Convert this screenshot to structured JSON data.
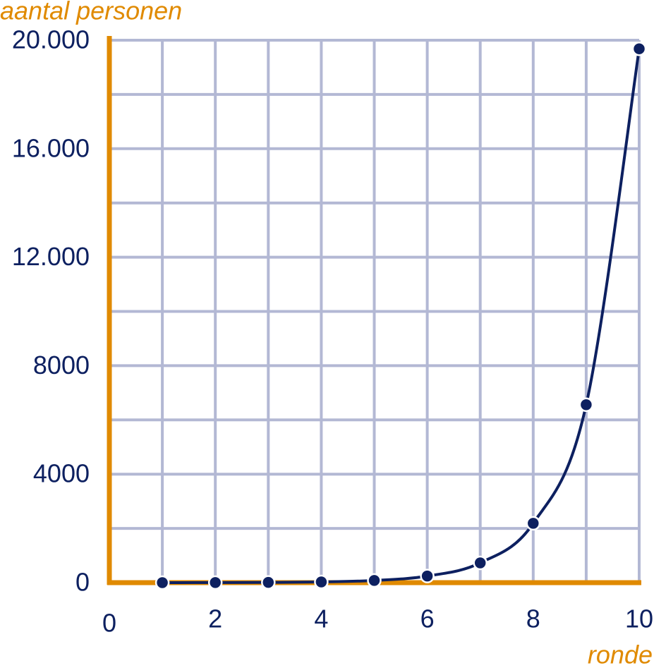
{
  "chart_data": {
    "type": "line",
    "y_label": "aantal personen",
    "x_label": "ronde",
    "x": [
      1,
      2,
      3,
      4,
      5,
      6,
      7,
      8,
      9,
      10
    ],
    "series": [
      {
        "name": null,
        "color": "#0d2060",
        "values": [
          1,
          3,
          9,
          27,
          81,
          243,
          729,
          2187,
          6561,
          19683
        ]
      }
    ],
    "xlim": [
      0,
      10
    ],
    "xticks": [
      0,
      2,
      4,
      6,
      8,
      10
    ],
    "xminorticks": [
      1,
      3,
      5,
      7,
      9
    ],
    "ylim": [
      0,
      20000
    ],
    "yticks": [
      0,
      4000,
      8000,
      {
        "value": 12000,
        "label": "12.000"
      },
      {
        "value": 16000,
        "label": "16.000"
      },
      {
        "value": 20000,
        "label": "20.000"
      }
    ],
    "yminorticks": [
      2000,
      6000,
      10000,
      14000,
      18000
    ],
    "grid": true,
    "grid_color": "#b3b8d4",
    "axis_color": "#e08a00",
    "label_color": "#0d2060"
  }
}
